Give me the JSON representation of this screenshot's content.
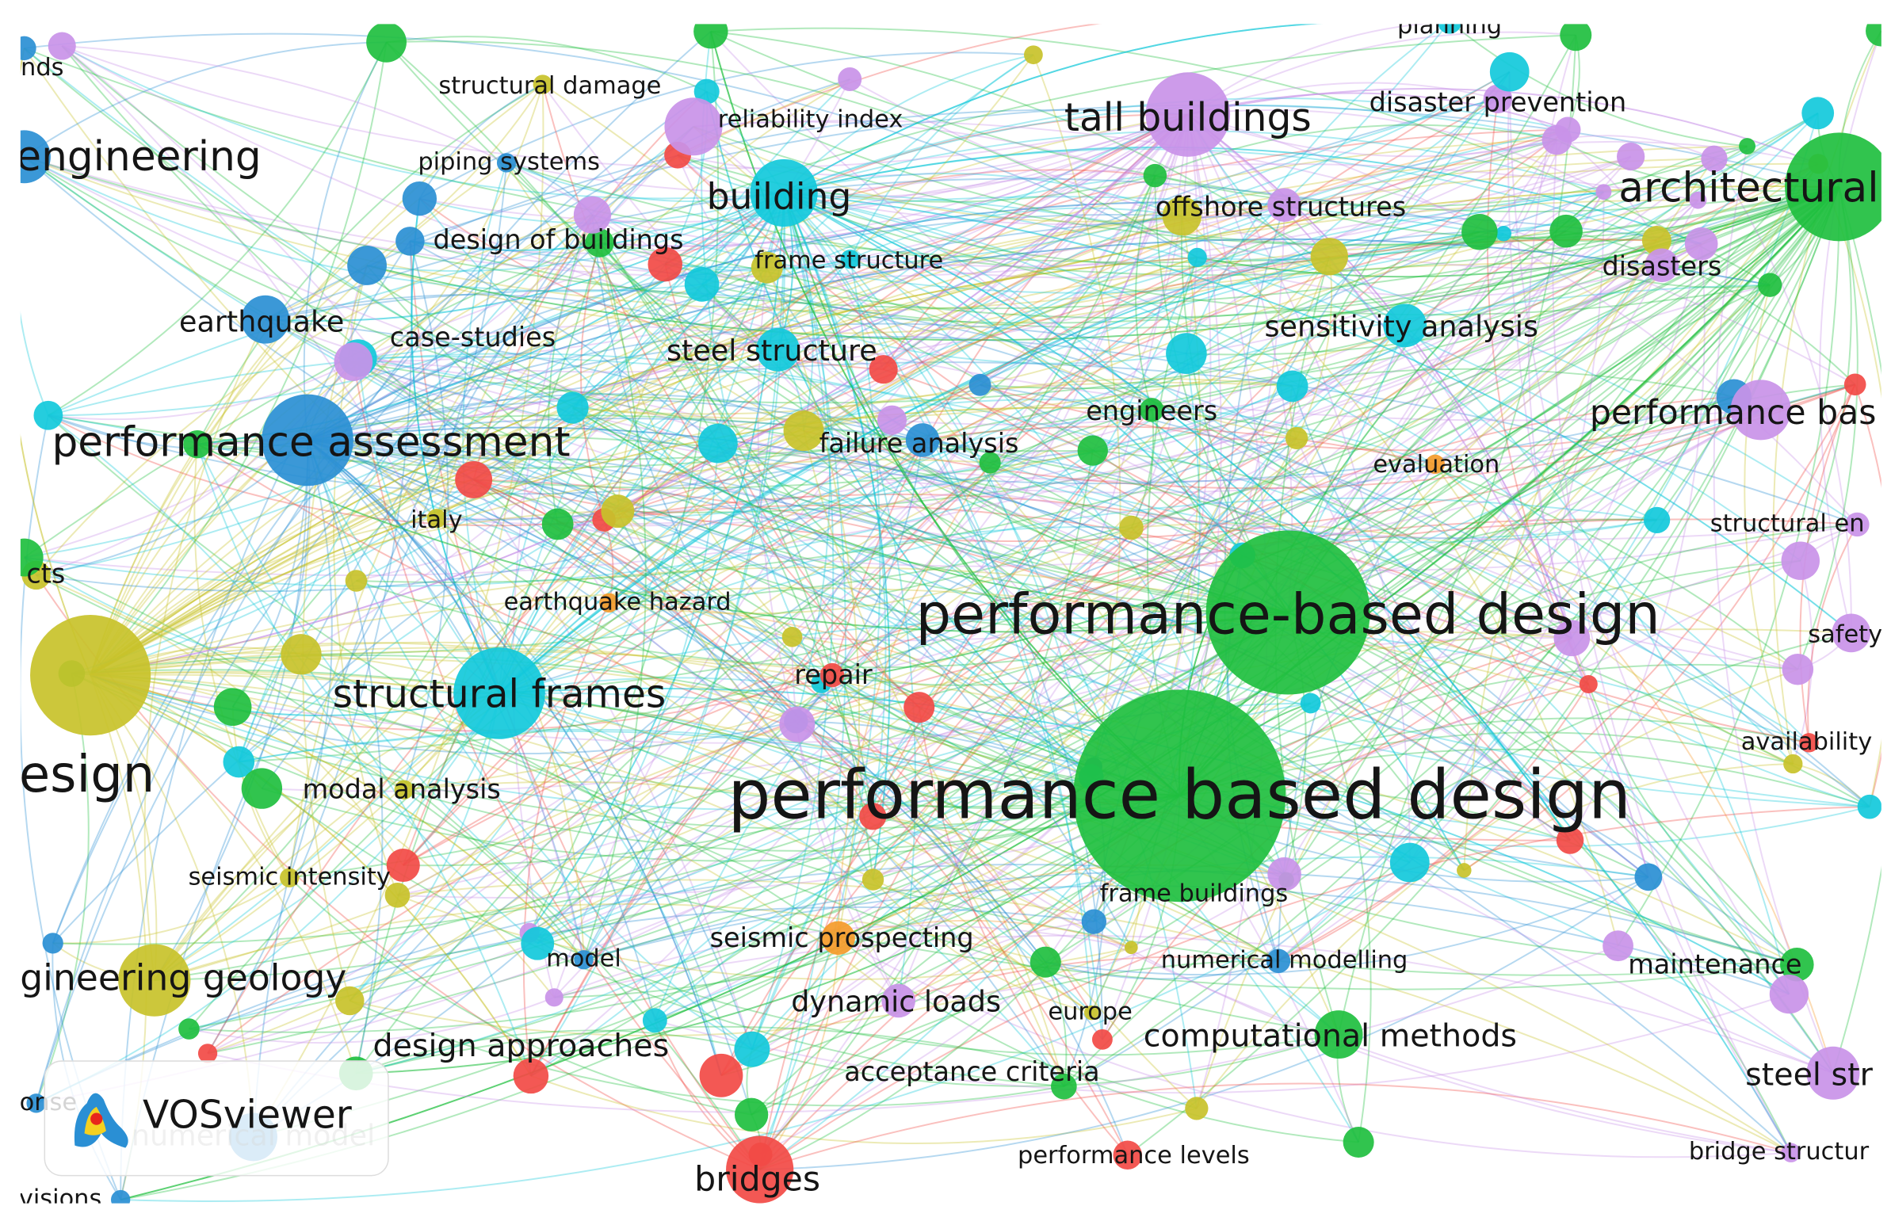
{
  "nodes": [
    {
      "label": "nds",
      "color": "#2a8fd4"
    },
    {
      "label": "structural damage",
      "color": "#c8c22a"
    },
    {
      "label": "reliability index",
      "color": "#c993e8"
    },
    {
      "label": "tall buildings",
      "color": "#c993e8"
    },
    {
      "label": "disaster prevention",
      "color": "#c993e8"
    },
    {
      "label": "engineering",
      "color": "#2a8fd4"
    },
    {
      "label": "piping systems",
      "color": "#2a8fd4"
    },
    {
      "label": "building",
      "color": "#12c9db"
    },
    {
      "label": "architectural",
      "color": "#1fbf3f"
    },
    {
      "label": "offshore structures",
      "color": "#c993e8"
    },
    {
      "label": "design of buildings",
      "color": "#2a8fd4"
    },
    {
      "label": "frame structure",
      "color": "#12c9db"
    },
    {
      "label": "disasters",
      "color": "#c993e8"
    },
    {
      "label": "earthquake",
      "color": "#2a8fd4"
    },
    {
      "label": "case-studies",
      "color": "#c993e8"
    },
    {
      "label": "sensitivity analysis",
      "color": "#12c9db"
    },
    {
      "label": "steel structure",
      "color": "#12c9db"
    },
    {
      "label": "performance assessment",
      "color": "#2a8fd4"
    },
    {
      "label": "engineers",
      "color": "#1fbf3f"
    },
    {
      "label": "performance bas",
      "color": "#c993e8"
    },
    {
      "label": "failure analysis",
      "color": "#2a8fd4"
    },
    {
      "label": "evaluation",
      "color": "#f59b2a"
    },
    {
      "label": "italy",
      "color": "#c8c22a"
    },
    {
      "label": "structural en",
      "color": "#c993e8"
    },
    {
      "label": "cts",
      "color": "#c8c22a"
    },
    {
      "label": "performance-based design",
      "color": "#1fbf3f"
    },
    {
      "label": "earthquake hazard",
      "color": "#f59b2a"
    },
    {
      "label": "safety",
      "color": "#c993e8"
    },
    {
      "label": "repair",
      "color": "#f24a45"
    },
    {
      "label": "structural frames",
      "color": "#12c9db"
    },
    {
      "label": "availability",
      "color": "#f24a45"
    },
    {
      "label": "esign",
      "color": "#c8c22a"
    },
    {
      "label": "performance based design",
      "color": "#1fbf3f"
    },
    {
      "label": "modal analysis",
      "color": "#c8c22a"
    },
    {
      "label": "seismic intensity",
      "color": "#c8c22a"
    },
    {
      "label": "frame buildings",
      "color": "#c993e8"
    },
    {
      "label": "seismic prospecting",
      "color": "#f59b2a"
    },
    {
      "label": "model",
      "color": "#2a8fd4"
    },
    {
      "label": "numerical modelling",
      "color": "#2a8fd4"
    },
    {
      "label": "maintenance",
      "color": "#1fbf3f"
    },
    {
      "label": "gineering geology",
      "color": "#c8c22a"
    },
    {
      "label": "dynamic loads",
      "color": "#c993e8"
    },
    {
      "label": "europe",
      "color": "#c8c22a"
    },
    {
      "label": "computational methods",
      "color": "#1fbf3f"
    },
    {
      "label": "design approaches",
      "color": "#c8c22a"
    },
    {
      "label": "acceptance criteria",
      "color": "#f24a45"
    },
    {
      "label": "steel str",
      "color": "#c993e8"
    },
    {
      "label": "numerical model",
      "color": "#2a8fd4"
    },
    {
      "label": "performance levels",
      "color": "#f24a45"
    },
    {
      "label": "bridge structur",
      "color": "#c993e8"
    },
    {
      "label": "bridges",
      "color": "#f24a45"
    },
    {
      "label": "visions",
      "color": "#2a8fd4"
    },
    {
      "label": "planning",
      "color": "#12c9db"
    },
    {
      "label": "onse",
      "color": "#2a8fd4"
    }
  ],
  "logo": "VOSviewer"
}
